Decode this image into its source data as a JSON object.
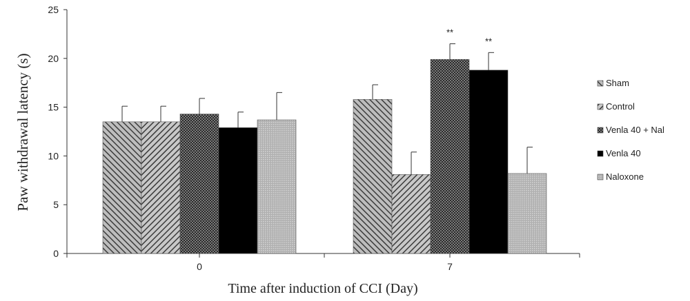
{
  "chart_data": {
    "type": "bar",
    "xlabel": "Time after induction of CCI (Day)",
    "ylabel": "Paw withdrawal latency (s)",
    "ylim": [
      0,
      25
    ],
    "yticks": [
      "0",
      "5",
      "10",
      "15",
      "20",
      "25"
    ],
    "categories": [
      "0",
      "7"
    ],
    "grid": false,
    "legend_position": "right",
    "series": [
      {
        "name": "Sham",
        "values": [
          13.5,
          15.8
        ],
        "errors": [
          1.6,
          1.5
        ],
        "pattern": "diag-left",
        "color": "#8a8a8a",
        "annotations": [
          "",
          ""
        ]
      },
      {
        "name": "Control",
        "values": [
          13.5,
          8.1
        ],
        "errors": [
          1.6,
          2.3
        ],
        "pattern": "diag-right",
        "color": "#7a7a7a",
        "annotations": [
          "",
          ""
        ]
      },
      {
        "name": "Venla 40 + Nal",
        "values": [
          14.3,
          19.9
        ],
        "errors": [
          1.6,
          1.6
        ],
        "pattern": "crosshatch",
        "color": "#3a3a3a",
        "annotations": [
          "",
          "**"
        ]
      },
      {
        "name": "Venla 40",
        "values": [
          12.9,
          18.8
        ],
        "errors": [
          1.6,
          1.8
        ],
        "pattern": "solid",
        "color": "#000000",
        "annotations": [
          "",
          "**"
        ]
      },
      {
        "name": "Naloxone",
        "values": [
          13.7,
          8.2
        ],
        "errors": [
          2.8,
          2.7
        ],
        "pattern": "fine",
        "color": "#a8a8a8",
        "annotations": [
          "",
          ""
        ]
      }
    ]
  }
}
